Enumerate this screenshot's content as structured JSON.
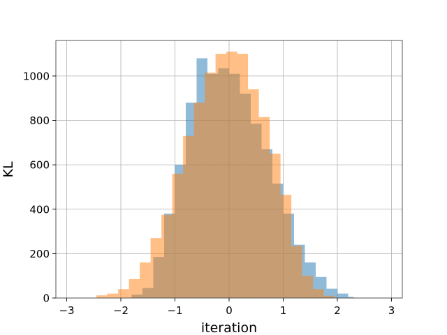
{
  "chart_data": {
    "type": "bar",
    "title": "",
    "xlabel": "iteration",
    "ylabel": "KL",
    "xlim": [
      -3.2,
      3.2
    ],
    "ylim": [
      0,
      1160
    ],
    "grid": true,
    "xticks": [
      -3,
      -2,
      -1,
      0,
      1,
      2,
      3
    ],
    "xtick_labels": [
      "−3",
      "−2",
      "−1",
      "0",
      "1",
      "2",
      "3"
    ],
    "yticks": [
      0,
      200,
      400,
      600,
      800,
      1000
    ],
    "ytick_labels": [
      "0",
      "200",
      "400",
      "600",
      "800",
      "1000"
    ],
    "series": [
      {
        "color": "#1f77b4",
        "opacity": 0.5,
        "bins": [
          [
            -1.8,
            -1.6,
            15
          ],
          [
            -1.6,
            -1.4,
            45
          ],
          [
            -1.4,
            -1.2,
            185
          ],
          [
            -1.2,
            -1.0,
            380
          ],
          [
            -1.0,
            -0.8,
            600
          ],
          [
            -0.8,
            -0.6,
            880
          ],
          [
            -0.6,
            -0.4,
            1080
          ],
          [
            -0.4,
            -0.2,
            1010
          ],
          [
            -0.2,
            0.0,
            1035
          ],
          [
            0.0,
            0.2,
            1010
          ],
          [
            0.2,
            0.4,
            920
          ],
          [
            0.4,
            0.6,
            785
          ],
          [
            0.6,
            0.8,
            670
          ],
          [
            0.8,
            1.0,
            515
          ],
          [
            1.0,
            1.2,
            380
          ],
          [
            1.2,
            1.4,
            240
          ],
          [
            1.4,
            1.6,
            160
          ],
          [
            1.6,
            1.8,
            95
          ],
          [
            1.8,
            2.0,
            42
          ],
          [
            2.0,
            2.2,
            20
          ],
          [
            2.2,
            2.3,
            5
          ]
        ]
      },
      {
        "color": "#ff7f0e",
        "opacity": 0.5,
        "bins": [
          [
            -2.45,
            -2.25,
            12
          ],
          [
            -2.25,
            -2.05,
            20
          ],
          [
            -2.05,
            -1.85,
            40
          ],
          [
            -1.85,
            -1.65,
            85
          ],
          [
            -1.65,
            -1.45,
            160
          ],
          [
            -1.45,
            -1.25,
            270
          ],
          [
            -1.25,
            -1.05,
            375
          ],
          [
            -1.05,
            -0.85,
            560
          ],
          [
            -0.85,
            -0.65,
            730
          ],
          [
            -0.65,
            -0.45,
            880
          ],
          [
            -0.45,
            -0.25,
            1015
          ],
          [
            -0.25,
            -0.05,
            1100
          ],
          [
            -0.05,
            0.15,
            1110
          ],
          [
            0.15,
            0.35,
            1100
          ],
          [
            0.35,
            0.55,
            940
          ],
          [
            0.55,
            0.75,
            815
          ],
          [
            0.75,
            0.95,
            650
          ],
          [
            0.95,
            1.15,
            465
          ],
          [
            1.15,
            1.35,
            235
          ],
          [
            1.35,
            1.55,
            100
          ],
          [
            1.55,
            1.75,
            40
          ],
          [
            1.75,
            1.95,
            10
          ]
        ]
      }
    ]
  }
}
